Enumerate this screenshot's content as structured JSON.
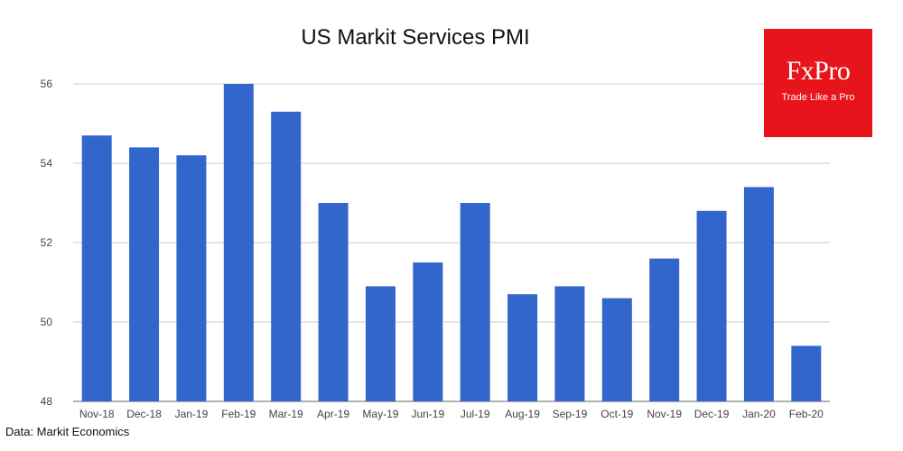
{
  "source": "Data: Markit Economics",
  "logo": {
    "name": "FxPro",
    "tagline": "Trade Like a Pro",
    "color": "#e8141b"
  },
  "chart_data": {
    "type": "bar",
    "title": "US Markit Services PMI",
    "xlabel": "",
    "ylabel": "",
    "categories": [
      "Nov-18",
      "Dec-18",
      "Jan-19",
      "Feb-19",
      "Mar-19",
      "Apr-19",
      "May-19",
      "Jun-19",
      "Jul-19",
      "Aug-19",
      "Sep-19",
      "Oct-19",
      "Nov-19",
      "Dec-19",
      "Jan-20",
      "Feb-20"
    ],
    "values": [
      54.7,
      54.4,
      54.2,
      56.0,
      55.3,
      53.0,
      50.9,
      51.5,
      53.0,
      50.7,
      50.9,
      50.6,
      51.6,
      52.8,
      53.4,
      49.4
    ],
    "ylim": [
      48,
      56
    ],
    "yticks": [
      48,
      50,
      52,
      54,
      56
    ],
    "grid": true,
    "bar_color": "#3366cc",
    "legend": "none"
  }
}
